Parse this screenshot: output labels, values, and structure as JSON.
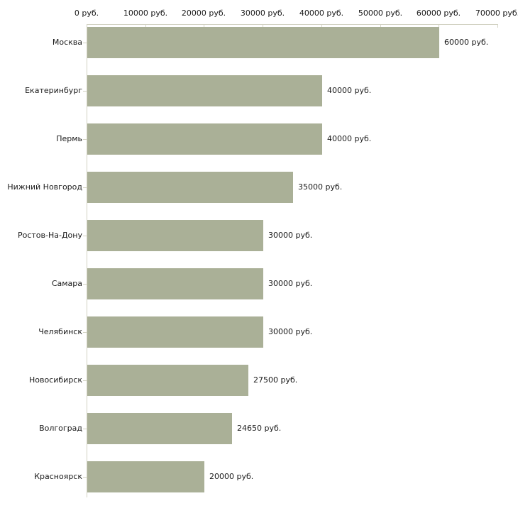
{
  "chart_data": {
    "type": "bar",
    "orientation": "horizontal",
    "title": "",
    "xlabel": "",
    "ylabel": "",
    "unit": "руб.",
    "xlim": [
      0,
      70000
    ],
    "grid": false,
    "legend": "none",
    "categories": [
      "Москва",
      "Екатеринбург",
      "Пермь",
      "Нижний Новгород",
      "Ростов-На-Дону",
      "Самара",
      "Челябинск",
      "Новосибирск",
      "Волгоград",
      "Красноярск"
    ],
    "values": [
      60000,
      40000,
      40000,
      35000,
      30000,
      30000,
      30000,
      27500,
      24650,
      20000
    ],
    "value_labels": [
      "60000 руб.",
      "40000 руб.",
      "40000 руб.",
      "35000 руб.",
      "30000 руб.",
      "30000 руб.",
      "30000 руб.",
      "27500 руб.",
      "24650 руб.",
      "20000 руб."
    ],
    "x_axis": {
      "tick_values": [
        0,
        10000,
        20000,
        30000,
        40000,
        50000,
        60000,
        70000
      ],
      "tick_labels": [
        "0 руб.",
        "10000 руб.",
        "20000 руб.",
        "30000 руб.",
        "40000 руб.",
        "50000 руб.",
        "60000 руб.",
        "70000 руб."
      ]
    },
    "colors": {
      "bar": "#aab097",
      "axis": "#d2d2c2",
      "text": "#1a1a1a",
      "background": "#ffffff"
    }
  }
}
